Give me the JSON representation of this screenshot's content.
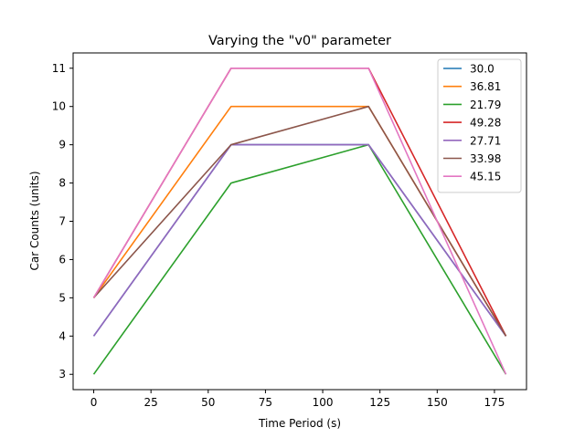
{
  "chart_data": {
    "type": "line",
    "title": "Varying the \"v0\" parameter",
    "xlabel": "Time Period (s)",
    "ylabel": "Car Counts (units)",
    "xlim": [
      -9,
      189
    ],
    "ylim": [
      2.6,
      11.4
    ],
    "xticks": [
      0,
      25,
      50,
      75,
      100,
      125,
      150,
      175
    ],
    "yticks": [
      3,
      4,
      5,
      6,
      7,
      8,
      9,
      10,
      11
    ],
    "grid": false,
    "legend": "top-right",
    "x": [
      0,
      60,
      120,
      180
    ],
    "series": [
      {
        "name": "30.0",
        "color": "#1f77b4",
        "values": [
          4,
          9,
          9,
          4
        ]
      },
      {
        "name": "36.81",
        "color": "#ff7f0e",
        "values": [
          5,
          10,
          10,
          4
        ]
      },
      {
        "name": "21.79",
        "color": "#2ca02c",
        "values": [
          3,
          8,
          9,
          3
        ]
      },
      {
        "name": "49.28",
        "color": "#d62728",
        "values": [
          5,
          11,
          11,
          4
        ]
      },
      {
        "name": "27.71",
        "color": "#9467bd",
        "values": [
          4,
          9,
          9,
          4
        ]
      },
      {
        "name": "33.98",
        "color": "#8c564b",
        "values": [
          5,
          9,
          10,
          4
        ]
      },
      {
        "name": "45.15",
        "color": "#e377c2",
        "values": [
          5,
          11,
          11,
          3
        ]
      }
    ]
  }
}
